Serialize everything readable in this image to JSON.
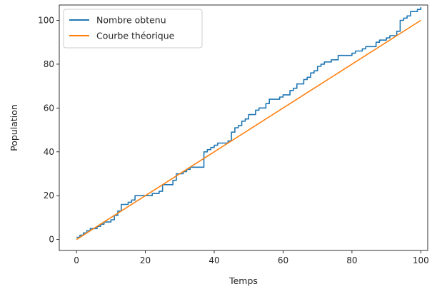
{
  "chart_data": {
    "type": "line",
    "title": "",
    "xlabel": "Temps",
    "ylabel": "Population",
    "xlim": [
      -5,
      102
    ],
    "ylim": [
      -5,
      107
    ],
    "xticks": [
      0,
      20,
      40,
      60,
      80,
      100
    ],
    "yticks": [
      0,
      20,
      40,
      60,
      80,
      100
    ],
    "grid": false,
    "legend_position": "top-left",
    "series": [
      {
        "name": "Nombre obtenu",
        "color": "#1f77b4",
        "step": true,
        "x": [
          0,
          1,
          2,
          3,
          4,
          5,
          6,
          7,
          8,
          9,
          10,
          11,
          12,
          13,
          14,
          15,
          16,
          17,
          18,
          19,
          20,
          21,
          22,
          23,
          24,
          25,
          26,
          27,
          28,
          29,
          30,
          31,
          32,
          33,
          34,
          35,
          36,
          37,
          38,
          39,
          40,
          41,
          42,
          43,
          44,
          45,
          46,
          47,
          48,
          49,
          50,
          51,
          52,
          53,
          54,
          55,
          56,
          57,
          58,
          59,
          60,
          61,
          62,
          63,
          64,
          65,
          66,
          67,
          68,
          69,
          70,
          71,
          72,
          73,
          74,
          75,
          76,
          77,
          78,
          79,
          80,
          81,
          82,
          83,
          84,
          85,
          86,
          87,
          88,
          89,
          90,
          91,
          92,
          93,
          94,
          95,
          96,
          97,
          98,
          99,
          100
        ],
        "y": [
          1,
          2,
          3,
          4,
          5,
          5,
          6,
          7,
          8,
          8,
          9,
          11,
          13,
          16,
          16,
          17,
          18,
          20,
          20,
          20,
          20,
          20,
          21,
          21,
          22,
          25,
          25,
          25,
          27,
          30,
          30,
          31,
          32,
          33,
          33,
          33,
          33,
          40,
          41,
          42,
          43,
          44,
          44,
          44,
          45,
          49,
          51,
          52,
          54,
          55,
          57,
          57,
          59,
          60,
          60,
          62,
          64,
          64,
          64,
          65,
          66,
          66,
          68,
          69,
          71,
          71,
          73,
          74,
          76,
          77,
          79,
          80,
          81,
          81,
          82,
          82,
          84,
          84,
          84,
          84,
          85,
          86,
          86,
          87,
          88,
          88,
          88,
          90,
          91,
          91,
          92,
          93,
          93,
          95,
          100,
          101,
          102,
          104,
          104,
          105,
          106
        ]
      },
      {
        "name": "Courbe théorique",
        "color": "#ff7f0e",
        "step": false,
        "x": [
          0,
          100
        ],
        "y": [
          0,
          100
        ]
      }
    ]
  }
}
